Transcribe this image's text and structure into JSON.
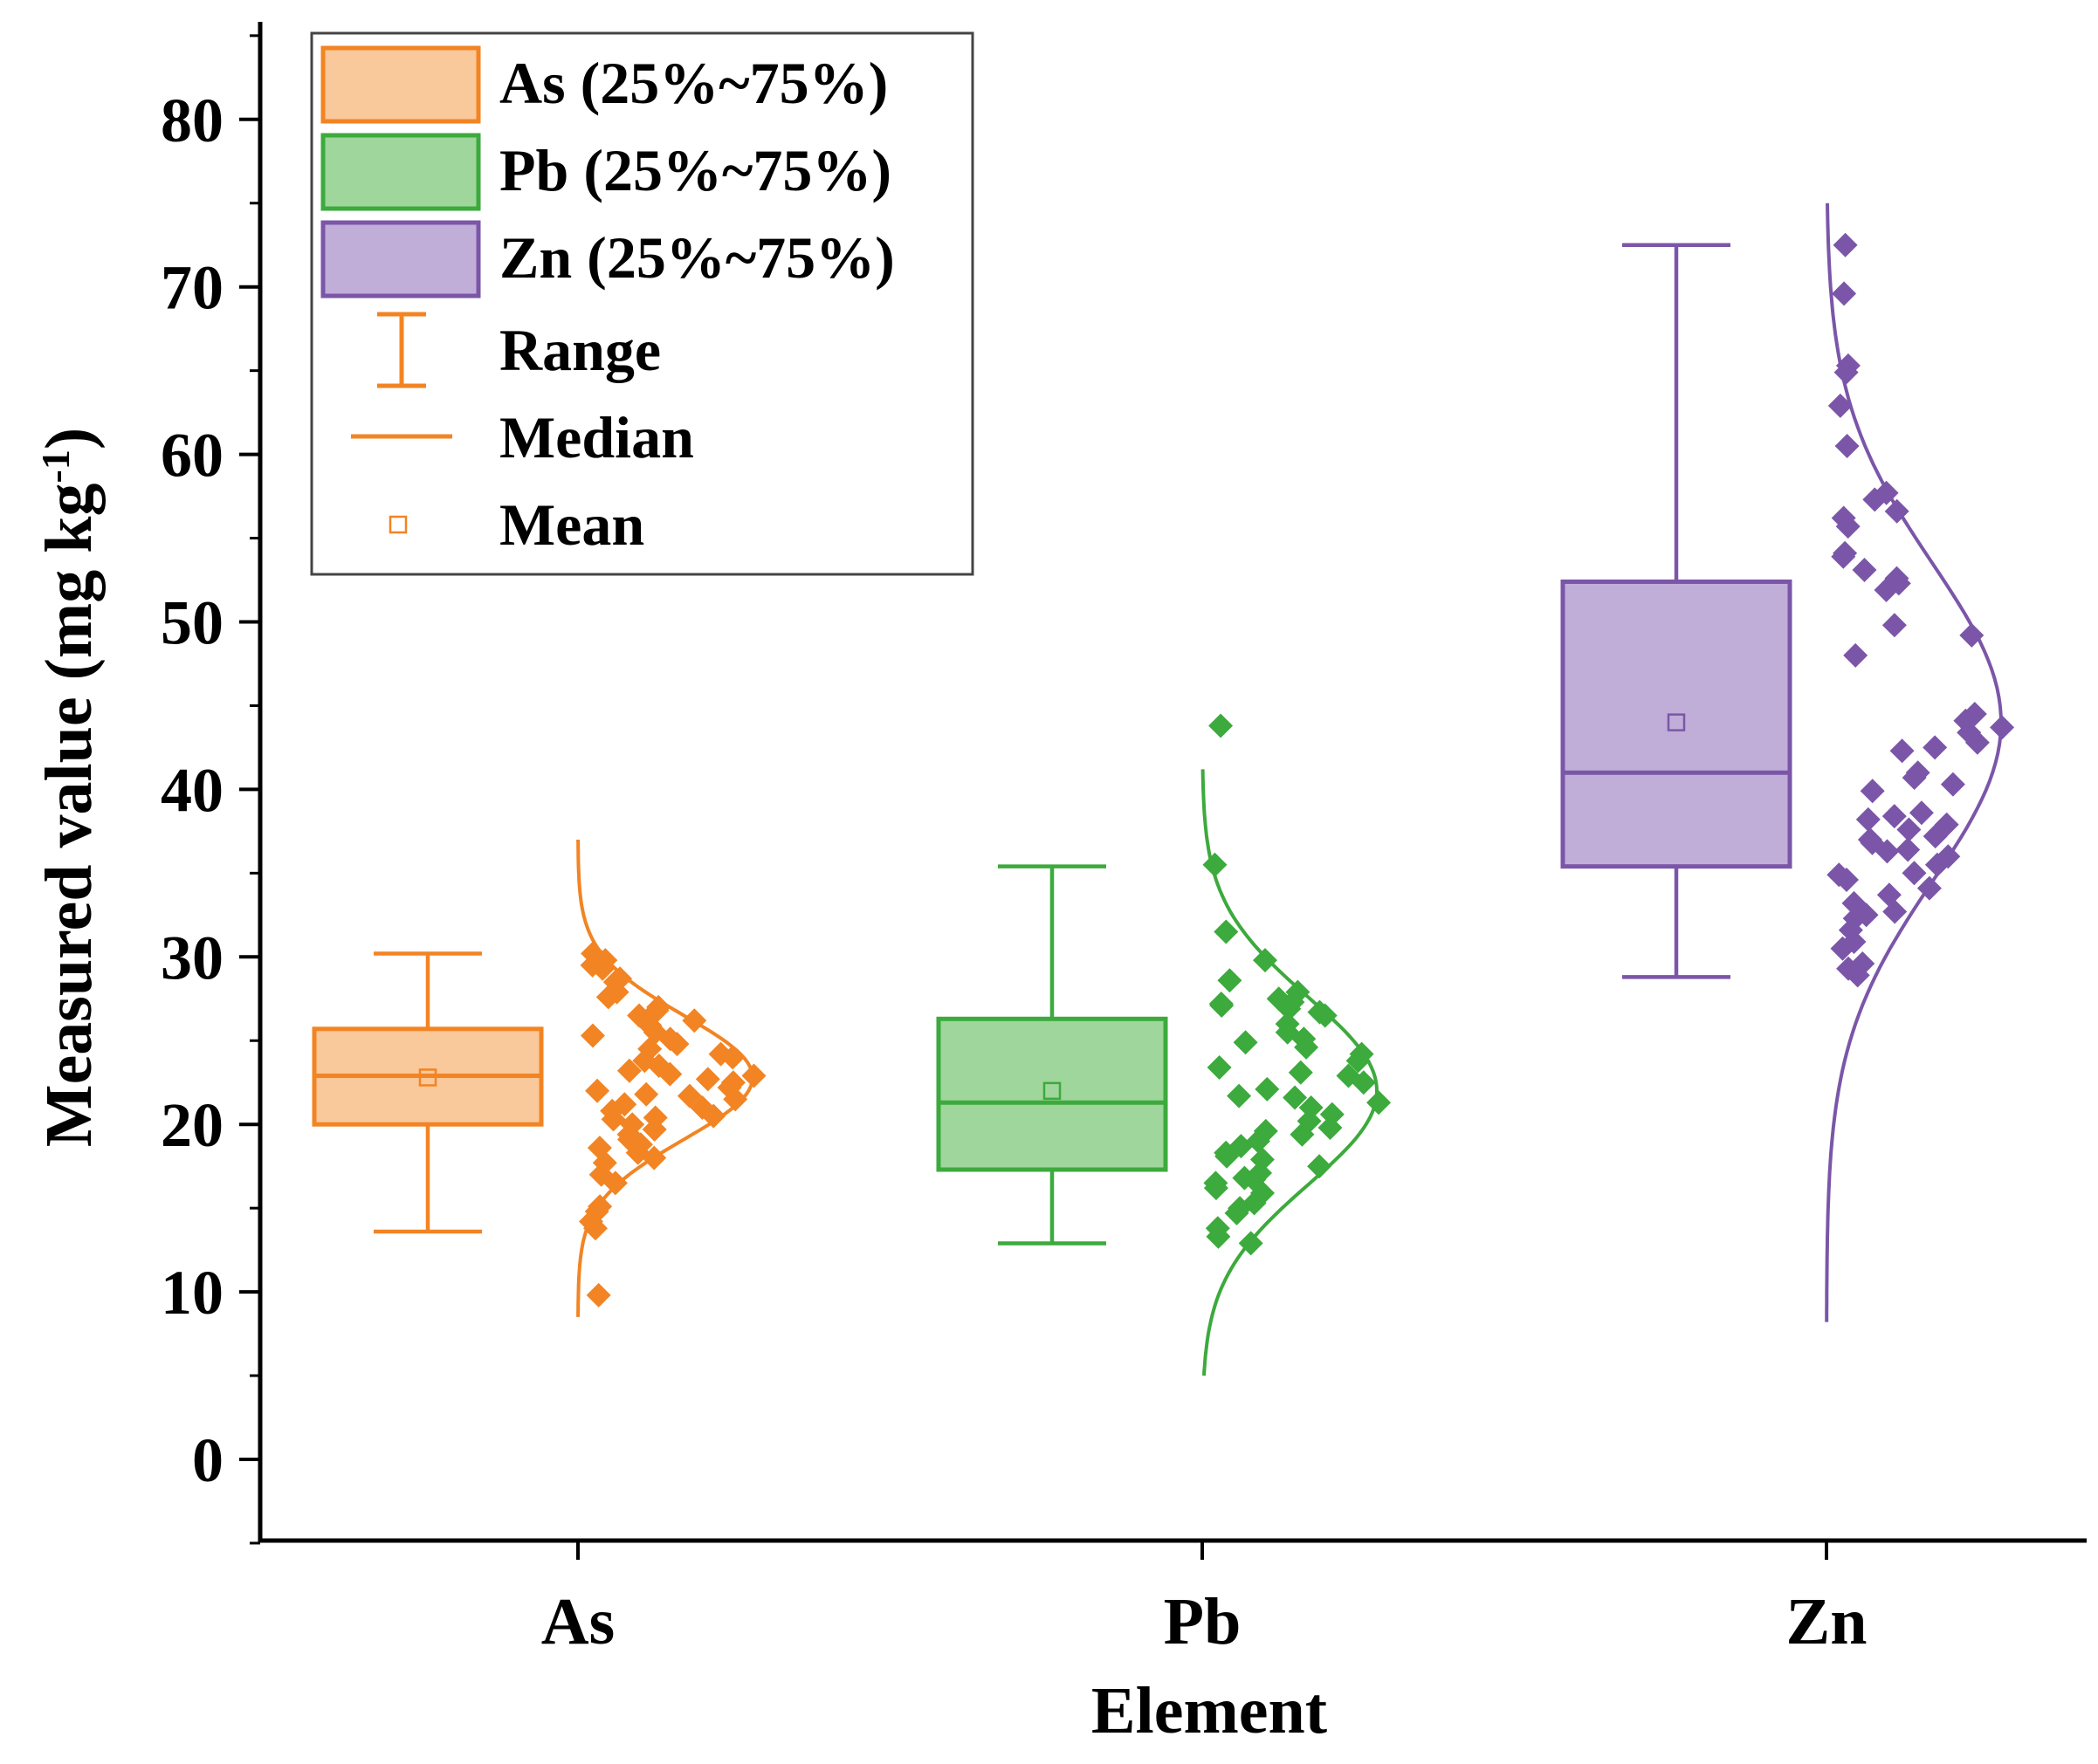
{
  "chart_data": {
    "type": "box",
    "title": "",
    "xlabel": "Element",
    "ylabel": "Measured value (mg kg",
    "ylabel_sup": "-1",
    "ylabel_close": ")",
    "ylim": [
      -5,
      85
    ],
    "yticks": [
      0,
      10,
      20,
      30,
      40,
      50,
      60,
      70,
      80
    ],
    "categories": [
      "As",
      "Pb",
      "Zn"
    ],
    "legend_position": "top-left",
    "legend": [
      {
        "key": "as",
        "label": "As (25%~75%)"
      },
      {
        "key": "pb",
        "label": "Pb (25%~75%)"
      },
      {
        "key": "zn",
        "label": "Zn (25%~75%)"
      },
      {
        "key": "range",
        "label": "Range"
      },
      {
        "key": "median",
        "label": "Median"
      },
      {
        "key": "mean",
        "label": "Mean"
      }
    ],
    "series": [
      {
        "name": "As",
        "color": "#f28423",
        "fill": "#f9c89b",
        "min": 13.6,
        "q1": 20.0,
        "median": 22.9,
        "q3": 25.7,
        "max": 30.2,
        "mean": 22.8,
        "points": [
          30.2,
          28.7,
          28.5,
          27.9,
          27.6,
          27.0,
          26.8,
          26.5,
          25.9,
          25.5,
          25.3,
          25.1,
          24.8,
          24.5,
          24.2,
          23.8,
          23.5,
          23.2,
          22.9,
          22.7,
          22.5,
          22.2,
          22.0,
          21.7,
          21.5,
          21.2,
          21.0,
          20.8,
          20.5,
          20.3,
          20.0,
          19.7,
          19.4,
          19.1,
          18.8,
          18.6,
          18.3,
          18.0,
          17.7,
          17.0,
          16.5,
          15.1,
          14.8,
          14.2,
          13.8,
          9.8,
          29.8,
          29.5,
          29.3,
          26.2,
          24.0,
          23.0,
          21.8,
          20.4
        ],
        "curve_mean": 22.8,
        "curve_sd": 3.7,
        "curve_range": [
          8.5,
          37.0
        ]
      },
      {
        "name": "Pb",
        "color": "#3caa3c",
        "fill": "#9ed69b",
        "min": 12.9,
        "q1": 17.3,
        "median": 21.3,
        "q3": 26.3,
        "max": 35.4,
        "mean": 22.0,
        "points": [
          43.8,
          35.5,
          31.5,
          29.8,
          28.6,
          27.9,
          27.5,
          27.3,
          27.1,
          26.9,
          26.5,
          26.0,
          25.5,
          25.1,
          24.6,
          24.2,
          23.8,
          23.4,
          22.9,
          22.5,
          22.1,
          21.7,
          21.3,
          21.0,
          20.6,
          20.2,
          19.8,
          19.4,
          19.0,
          18.7,
          18.3,
          17.9,
          17.5,
          17.1,
          16.8,
          16.5,
          16.2,
          15.9,
          15.3,
          15.0,
          14.7,
          13.8,
          13.3,
          12.9,
          27.2,
          24.9,
          23.1,
          21.6,
          19.6,
          18.1,
          16.7,
          26.7
        ],
        "curve_mean": 22.0,
        "curve_sd": 5.6,
        "curve_range": [
          5.0,
          41.2
        ]
      },
      {
        "name": "Zn",
        "color": "#7b56a8",
        "fill": "#c0aed8",
        "min": 28.8,
        "q1": 35.4,
        "median": 41.0,
        "q3": 52.4,
        "max": 72.5,
        "mean": 44.0,
        "points": [
          72.5,
          69.6,
          65.3,
          64.9,
          62.9,
          60.5,
          57.7,
          57.3,
          56.6,
          56.2,
          55.7,
          54.1,
          53.9,
          53.1,
          52.6,
          52.3,
          51.9,
          49.8,
          49.2,
          48.0,
          44.5,
          44.1,
          43.7,
          43.4,
          42.8,
          42.5,
          42.3,
          41.0,
          40.7,
          40.3,
          39.9,
          38.6,
          38.4,
          38.2,
          37.9,
          37.6,
          37.2,
          37.0,
          36.8,
          36.4,
          36.0,
          35.5,
          35.0,
          34.6,
          34.1,
          33.7,
          33.2,
          32.7,
          32.3,
          31.6,
          30.9,
          30.5,
          29.6,
          29.3,
          28.9,
          36.3,
          34.9,
          32.5
        ],
        "curve_mean": 44.0,
        "curve_sd": 9.5,
        "curve_range": [
          8.2,
          75.0
        ]
      }
    ]
  }
}
